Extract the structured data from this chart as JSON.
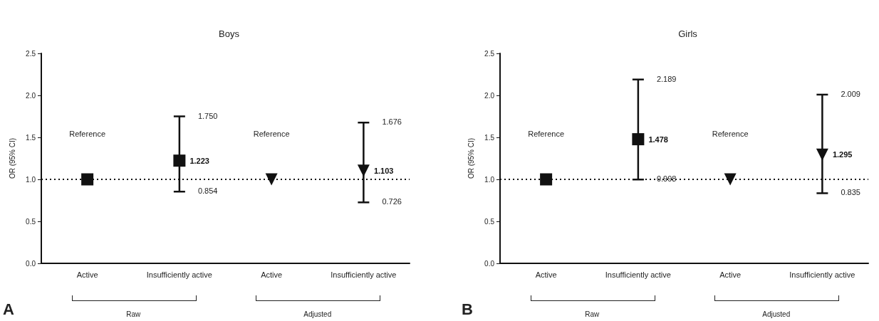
{
  "chart_data": [
    {
      "type": "scatter",
      "title": "Boys",
      "ylabel": "OR (95% CI)",
      "categories": [
        "Active",
        "Insufficiently active",
        "Active",
        "Insufficiently active"
      ],
      "series": [
        {
          "color": "#111111",
          "marker": "square",
          "values": [
            1,
            1.223,
            null,
            null
          ],
          "errors": [
            null,
            [
              0.854,
              1.75
            ],
            null,
            null
          ],
          "value_labels": [
            null,
            "1.223",
            null,
            null
          ]
        },
        {
          "color": "#111111",
          "marker": "triangle",
          "values": [
            null,
            null,
            1,
            1.103
          ],
          "errors": [
            null,
            null,
            null,
            [
              0.726,
              1.676
            ]
          ],
          "value_labels": [
            null,
            null,
            null,
            "1.103"
          ]
        }
      ],
      "ylim": [
        0,
        2.5
      ],
      "yticks": [
        {
          "value": 0,
          "label": "0.0"
        },
        {
          "value": 0.5,
          "label": "0.5"
        },
        {
          "value": 1,
          "label": "1.0"
        },
        {
          "value": 1.5,
          "label": "1.5"
        },
        {
          "value": 2,
          "label": "2.0"
        },
        {
          "value": 2.5,
          "label": "2.5"
        }
      ],
      "ref_lines": [
        {
          "axis": "y",
          "value": 1,
          "line_style": "dotted",
          "color": "#111111"
        }
      ],
      "annotations": [
        "Reference",
        "Reference",
        "1.750",
        "0.854",
        "1.676",
        "0.726",
        "Raw",
        "Adjusted",
        "A"
      ]
    },
    {
      "type": "scatter",
      "title": "Girls",
      "ylabel": "OR (95% CI)",
      "categories": [
        "Active",
        "Insufficiently active",
        "Active",
        "Insufficiently active"
      ],
      "series": [
        {
          "color": "#111111",
          "marker": "square",
          "values": [
            1,
            1.478,
            null,
            null
          ],
          "errors": [
            null,
            [
              0.998,
              2.189
            ],
            null,
            null
          ],
          "value_labels": [
            null,
            "1.478",
            null,
            null
          ]
        },
        {
          "color": "#111111",
          "marker": "triangle",
          "values": [
            null,
            null,
            1,
            1.295
          ],
          "errors": [
            null,
            null,
            null,
            [
              0.835,
              2.009
            ]
          ],
          "value_labels": [
            null,
            null,
            null,
            "1.295"
          ]
        }
      ],
      "ylim": [
        0,
        2.5
      ],
      "yticks": [
        {
          "value": 0,
          "label": "0.0"
        },
        {
          "value": 0.5,
          "label": "0.5"
        },
        {
          "value": 1,
          "label": "1.0"
        },
        {
          "value": 1.5,
          "label": "1.5"
        },
        {
          "value": 2,
          "label": "2.0"
        },
        {
          "value": 2.5,
          "label": "2.5"
        }
      ],
      "ref_lines": [
        {
          "axis": "y",
          "value": 1,
          "line_style": "dotted",
          "color": "#111111"
        }
      ],
      "annotations": [
        "Reference",
        "Reference",
        "2.189",
        "0.998",
        "2.009",
        "0.835",
        "Raw",
        "Adjusted",
        "B"
      ]
    }
  ]
}
